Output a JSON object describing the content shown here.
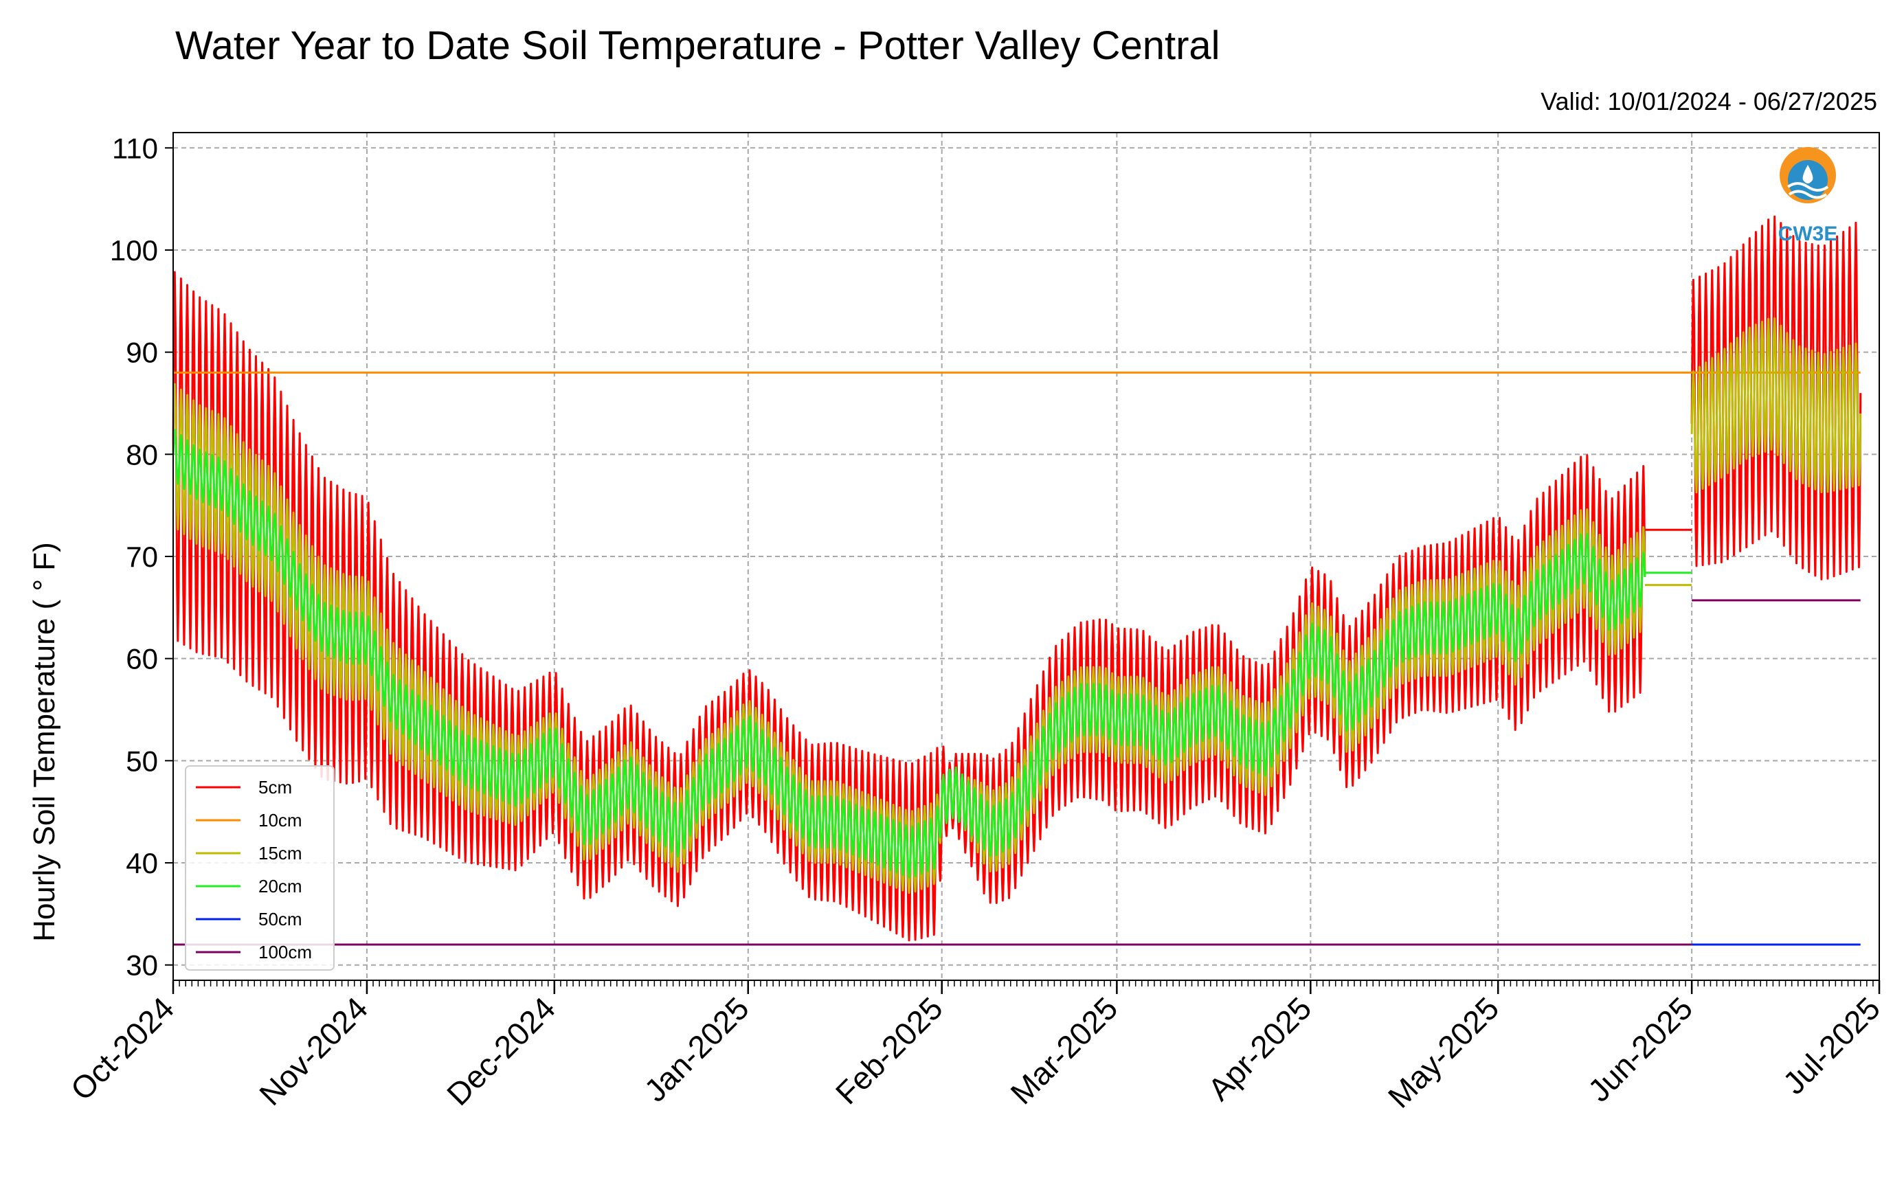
{
  "chart_data": {
    "type": "line",
    "title": "Water Year to Date Soil Temperature - Potter Valley Central",
    "valid_text": "Valid: 10/01/2024 - 06/27/2025",
    "ylabel": "Hourly Soil Temperature ( ° F)",
    "xlabel": "",
    "ylim": [
      28.5,
      111.5
    ],
    "y_ticks": [
      30,
      40,
      50,
      60,
      70,
      80,
      90,
      100,
      110
    ],
    "x_ticks": [
      "Oct-2024",
      "Nov-2024",
      "Dec-2024",
      "Jan-2025",
      "Feb-2025",
      "Mar-2025",
      "Apr-2025",
      "May-2025",
      "Jun-2025",
      "Jul-2025"
    ],
    "x_tick_days": [
      0,
      31,
      61,
      92,
      123,
      151,
      182,
      212,
      243,
      273
    ],
    "xlim_days": [
      0,
      273
    ],
    "grid": true,
    "legend_position": "lower-left",
    "series": [
      {
        "name": "5cm",
        "color": "#ff0000",
        "segments": [
          {
            "type": "diurnal",
            "start_day": 0,
            "end_day": 235.5,
            "mean_days": [
              0,
              4,
              8,
              12,
              16,
              20,
              24,
              28,
              31,
              35,
              39,
              43,
              47,
              51,
              55,
              59,
              61,
              63,
              66,
              70,
              73,
              77,
              81,
              85,
              89,
              92,
              95,
              98,
              102,
              106,
              110,
              114,
              118,
              122,
              123,
              125,
              128,
              131,
              134,
              137,
              141,
              145,
              149,
              151,
              155,
              159,
              163,
              167,
              171,
              175,
              179,
              182,
              185,
              188,
              192,
              196,
              200,
              204,
              208,
              212,
              215,
              218,
              222,
              226,
              230,
              235.5
            ],
            "mean_values": [
              80,
              78,
              77,
              74,
              72,
              67,
              63,
              62,
              62,
              56,
              54,
              52,
              50,
              49,
              48,
              50,
              51,
              48,
              44,
              46,
              48,
              45,
              43,
              48,
              50,
              52,
              50,
              47,
              44,
              44,
              43,
              42,
              41,
              42,
              46,
              47,
              45,
              43,
              44,
              48,
              53,
              55,
              55,
              54,
              54,
              52,
              54,
              55,
              52,
              51,
              56,
              61,
              60,
              55,
              58,
              62,
              63,
              63,
              64,
              65,
              62,
              66,
              68,
              70,
              65,
              68
            ],
            "amp_days": [
              0,
              15,
              30,
              40,
              60,
              92,
              110,
              122,
              124,
              130,
              150,
              180,
              200,
              212,
              235.5
            ],
            "amp_values": [
              18,
              16,
              14,
              11,
              8,
              7,
              8,
              9,
              3,
              7,
              9,
              8,
              8,
              9,
              11
            ]
          },
          {
            "type": "flat",
            "start_day": 235.5,
            "end_day": 243,
            "value": 72.6
          },
          {
            "type": "diurnal",
            "start_day": 243,
            "end_day": 270,
            "mean_days": [
              243,
              248,
              252,
              256,
              260,
              264,
              270
            ],
            "mean_values": [
              83,
              84,
              86,
              88,
              85,
              84,
              86
            ],
            "amp_days": [
              243,
              270
            ],
            "amp_values": [
              14,
              17
            ]
          }
        ]
      },
      {
        "name": "10cm",
        "color": "#ff8c00",
        "segments": [
          {
            "type": "flat",
            "start_day": 0,
            "end_day": 270,
            "value": 88
          }
        ]
      },
      {
        "name": "15cm",
        "color": "#bcbc00",
        "segments": [
          {
            "type": "diurnal",
            "start_day": 0,
            "end_day": 235.5,
            "mean_days": [
              0,
              4,
              8,
              12,
              16,
              20,
              24,
              28,
              31,
              35,
              39,
              43,
              47,
              51,
              55,
              59,
              61,
              63,
              66,
              70,
              73,
              77,
              81,
              85,
              89,
              92,
              95,
              98,
              102,
              106,
              110,
              114,
              118,
              122,
              123,
              125,
              128,
              131,
              134,
              137,
              141,
              145,
              149,
              151,
              155,
              159,
              163,
              167,
              171,
              175,
              179,
              182,
              185,
              188,
              192,
              196,
              200,
              204,
              208,
              212,
              215,
              218,
              222,
              226,
              230,
              235.5
            ],
            "mean_values": [
              80,
              78,
              77,
              74,
              72,
              67,
              63,
              62,
              62,
              56,
              54,
              52,
              50,
              49,
              48,
              50,
              51,
              48,
              44,
              46,
              48,
              45,
              43,
              48,
              50,
              52,
              50,
              47,
              44,
              44,
              43,
              42,
              41,
              42,
              46,
              47,
              45,
              43,
              44,
              48,
              53,
              55,
              55,
              54,
              54,
              52,
              54,
              55,
              52,
              51,
              56,
              61,
              60,
              55,
              58,
              62,
              63,
              63,
              64,
              65,
              62,
              66,
              68,
              70,
              65,
              68
            ],
            "amp_days": [
              0,
              30,
              60,
              122,
              124,
              130,
              235.5
            ],
            "amp_values": [
              7,
              6,
              4,
              4,
              1.5,
              4,
              5
            ]
          },
          {
            "type": "flat",
            "start_day": 235.5,
            "end_day": 243,
            "value": 67.2
          },
          {
            "type": "diurnal",
            "start_day": 243,
            "end_day": 270,
            "mean_days": [
              243,
              248,
              252,
              256,
              260,
              264,
              270
            ],
            "mean_values": [
              82,
              84,
              86,
              87,
              84,
              83,
              84
            ],
            "amp_days": [
              243,
              270
            ],
            "amp_values": [
              6,
              7
            ]
          }
        ]
      },
      {
        "name": "20cm",
        "color": "#22ee22",
        "segments": [
          {
            "type": "diurnal",
            "start_day": 0,
            "end_day": 235.5,
            "mean_days": [
              0,
              4,
              8,
              12,
              16,
              20,
              24,
              28,
              31,
              35,
              39,
              43,
              47,
              51,
              55,
              59,
              61,
              63,
              66,
              70,
              73,
              77,
              81,
              85,
              89,
              92,
              95,
              98,
              102,
              106,
              110,
              114,
              118,
              122,
              123,
              125,
              128,
              131,
              134,
              137,
              141,
              145,
              149,
              151,
              155,
              159,
              163,
              167,
              171,
              175,
              179,
              182,
              185,
              188,
              192,
              196,
              200,
              204,
              208,
              212,
              215,
              218,
              222,
              226,
              230,
              235.5
            ],
            "mean_values": [
              80,
              78,
              77,
              74,
              72,
              67,
              63,
              62,
              62,
              56,
              54,
              52,
              50,
              49,
              48,
              50,
              51,
              48,
              44,
              46,
              48,
              45,
              43,
              48,
              50,
              52,
              50,
              47,
              44,
              44,
              43,
              42,
              41,
              42,
              46,
              47,
              45,
              43,
              44,
              48,
              53,
              55,
              55,
              54,
              54,
              52,
              54,
              55,
              52,
              51,
              56,
              61,
              60,
              55,
              58,
              62,
              63,
              63,
              64,
              65,
              62,
              66,
              68,
              70,
              65,
              68
            ],
            "amp_days": [
              0,
              235.5
            ],
            "amp_values": [
              2.5,
              2.5
            ]
          },
          {
            "type": "flat",
            "start_day": 235.5,
            "end_day": 243,
            "value": 68.4
          }
        ]
      },
      {
        "name": "50cm",
        "color": "#0022ee",
        "segments": [
          {
            "type": "flat",
            "start_day": 243,
            "end_day": 270,
            "value": 32
          }
        ]
      },
      {
        "name": "100cm",
        "color": "#800060",
        "segments": [
          {
            "type": "flat",
            "start_day": 0,
            "end_day": 243,
            "value": 32
          },
          {
            "type": "flat",
            "start_day": 243,
            "end_day": 270,
            "value": 65.7
          }
        ]
      }
    ]
  },
  "logo": {
    "text": "CW3E"
  }
}
